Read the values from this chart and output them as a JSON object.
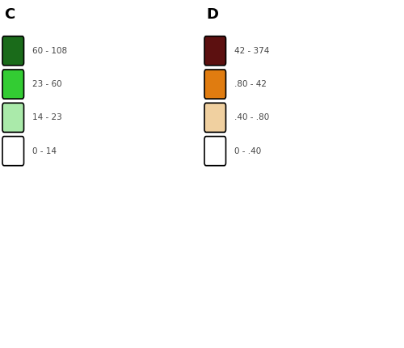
{
  "title_C": "C",
  "title_D": "D",
  "legend_C": {
    "labels": [
      "60 - 108",
      "23 - 60",
      "14 - 23",
      "0 - 14"
    ],
    "colors": [
      "#1a6b1a",
      "#33cc33",
      "#aaeaaa",
      "#ffffff"
    ]
  },
  "legend_D": {
    "labels": [
      "42 - 374",
      ".80 - 42",
      ".40 - .80",
      "0 - .40"
    ],
    "colors": [
      "#5c1010",
      "#e07c10",
      "#f0d0a0",
      "#ffffff"
    ]
  },
  "background": "#ffffff",
  "fig_width": 5.0,
  "fig_height": 4.3,
  "dpi": 100
}
